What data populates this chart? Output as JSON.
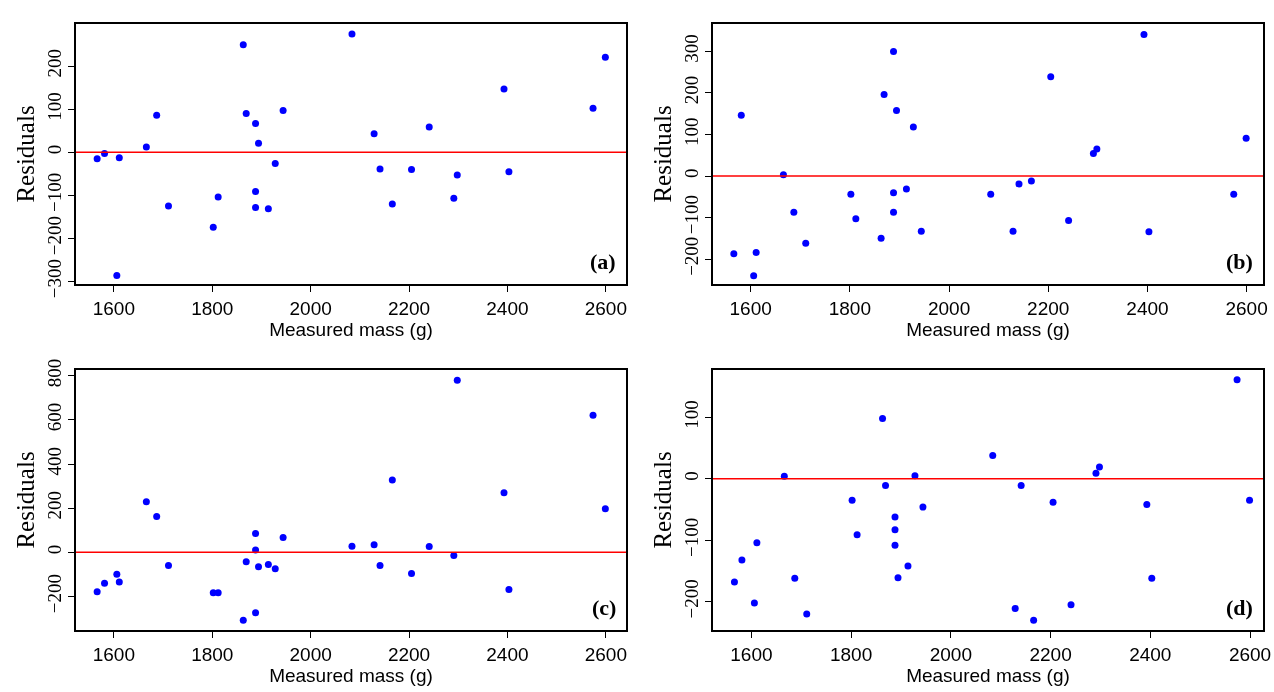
{
  "chart_data": [
    {
      "type": "scatter",
      "xlabel": "Measured mass (g)",
      "ylabel": "Residuals",
      "annotations": [
        "(a)"
      ],
      "marker": "circle",
      "x": [
        1566,
        1581,
        1606,
        1611,
        1666,
        1687,
        1711,
        1802,
        1812,
        1863,
        1869,
        1888,
        1888,
        1888,
        1894,
        1914,
        1928,
        1944,
        2084,
        2129,
        2141,
        2166,
        2205,
        2241,
        2291,
        2298,
        2393,
        2403,
        2574,
        2599
      ],
      "series": [
        {
          "color": "#0000ff",
          "values": [
            -15,
            -3,
            -286,
            -13,
            12,
            86,
            -125,
            -174,
            -104,
            250,
            90,
            67,
            -91,
            -128,
            21,
            -131,
            -26,
            97,
            275,
            43,
            -39,
            -120,
            -40,
            59,
            -107,
            -53,
            147,
            -45,
            102,
            221
          ]
        }
      ],
      "xlim": [
        1523,
        2641
      ],
      "xticks": [
        1600,
        1800,
        2000,
        2200,
        2400,
        2600
      ],
      "ylim": [
        -306,
        298
      ],
      "yticks": [
        -300,
        -200,
        -100,
        0,
        100,
        200
      ],
      "ref_lines": [
        {
          "axis": "y",
          "value": 0,
          "color": "#ff0000"
        }
      ]
    },
    {
      "type": "scatter",
      "xlabel": "Measured mass (g)",
      "ylabel": "Residuals",
      "annotations": [
        "(b)"
      ],
      "marker": "circle",
      "x": [
        1566,
        1581,
        1606,
        1611,
        1666,
        1687,
        1711,
        1802,
        1812,
        1863,
        1869,
        1888,
        1888,
        1888,
        1894,
        1914,
        1928,
        1944,
        2084,
        2129,
        2141,
        2166,
        2205,
        2241,
        2291,
        2298,
        2393,
        2403,
        2574,
        2599
      ],
      "series": [
        {
          "color": "#0000ff",
          "values": [
            -187,
            146,
            -240,
            -184,
            3,
            -87,
            -162,
            -44,
            -103,
            -150,
            196,
            300,
            -40,
            -87,
            158,
            -31,
            118,
            -133,
            -44,
            -133,
            -19,
            -12,
            239,
            -107,
            54,
            65,
            341,
            -134,
            -44,
            91
          ]
        }
      ],
      "xlim": [
        1524,
        2633
      ],
      "xticks": [
        1600,
        1800,
        2000,
        2200,
        2400,
        2600
      ],
      "ylim": [
        -260,
        366
      ],
      "yticks": [
        -200,
        -100,
        0,
        100,
        200,
        300
      ],
      "ref_lines": [
        {
          "axis": "y",
          "value": 0,
          "color": "#ff0000"
        }
      ]
    },
    {
      "type": "scatter",
      "xlabel": "Measured mass (g)",
      "ylabel": "Residuals",
      "annotations": [
        "(c)"
      ],
      "marker": "circle",
      "x": [
        1566,
        1581,
        1606,
        1611,
        1666,
        1687,
        1711,
        1802,
        1812,
        1863,
        1869,
        1888,
        1888,
        1888,
        1894,
        1914,
        1928,
        1944,
        2084,
        2129,
        2141,
        2166,
        2205,
        2241,
        2291,
        2298,
        2393,
        2403,
        2574,
        2599
      ],
      "series": [
        {
          "color": "#0000ff",
          "values": [
            -179,
            -140,
            -99,
            -135,
            229,
            162,
            -60,
            -183,
            -183,
            -308,
            -43,
            85,
            10,
            -274,
            -65,
            -55,
            -74,
            67,
            27,
            34,
            -60,
            328,
            -96,
            26,
            -14,
            779,
            270,
            -169,
            621,
            197
          ]
        }
      ],
      "xlim": [
        1523,
        2641
      ],
      "xticks": [
        1600,
        1800,
        2000,
        2200,
        2400,
        2600
      ],
      "ylim": [
        -352,
        826
      ],
      "yticks": [
        -200,
        0,
        200,
        400,
        600,
        800
      ],
      "ref_lines": [
        {
          "axis": "y",
          "value": 0,
          "color": "#ff0000"
        }
      ]
    },
    {
      "type": "scatter",
      "xlabel": "Measured mass (g)",
      "ylabel": "Residuals",
      "annotations": [
        "(d)"
      ],
      "marker": "circle",
      "x": [
        1566,
        1581,
        1606,
        1611,
        1666,
        1687,
        1711,
        1802,
        1812,
        1863,
        1869,
        1888,
        1888,
        1888,
        1894,
        1914,
        1928,
        1944,
        2084,
        2129,
        2141,
        2166,
        2205,
        2241,
        2291,
        2298,
        2393,
        2403,
        2574,
        2599
      ],
      "series": [
        {
          "color": "#0000ff",
          "values": [
            -168,
            -132,
            -202,
            -104,
            4,
            -162,
            -220,
            -35,
            -91,
            98,
            -11,
            -62,
            -83,
            -108,
            -161,
            -142,
            5,
            -46,
            38,
            -211,
            -11,
            -230,
            -38,
            -205,
            9,
            19,
            -42,
            -162,
            161,
            -35
          ]
        }
      ],
      "xlim": [
        1523,
        2626
      ],
      "xticks": [
        1600,
        1800,
        2000,
        2200,
        2400,
        2600
      ],
      "ylim": [
        -246,
        177
      ],
      "yticks": [
        -200,
        -100,
        0,
        100
      ],
      "ref_lines": [
        {
          "axis": "y",
          "value": 0,
          "color": "#ff0000"
        }
      ]
    }
  ]
}
